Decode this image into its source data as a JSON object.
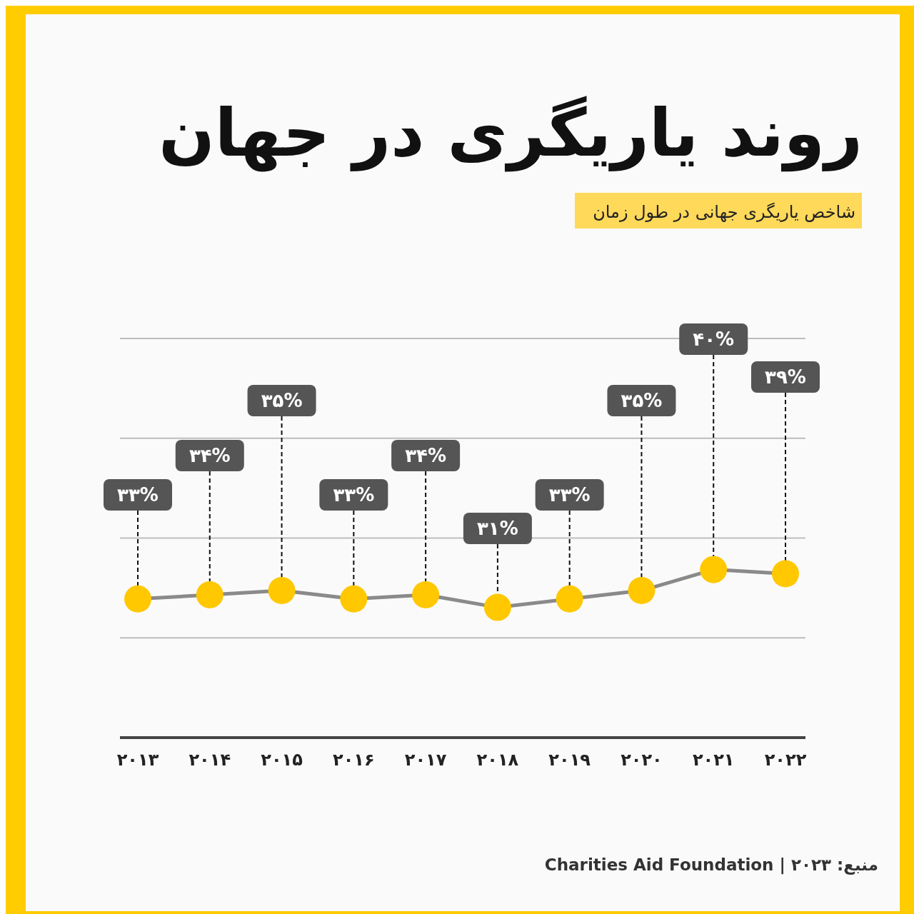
{
  "chart_data": {
    "type": "line",
    "title": "روند یاریگری در جهان",
    "subtitle": "شاخص یاریگری جهانی در طول زمان",
    "categories": [
      "۲۰۱۳",
      "۲۰۱۴",
      "۲۰۱۵",
      "۲۰۱۶",
      "۲۰۱۷",
      "۲۰۱۸",
      "۲۰۱۹",
      "۲۰۲۰",
      "۲۰۲۱",
      "۲۰۲۲"
    ],
    "series": [
      {
        "color": "#ffc800",
        "values": [
          33,
          34,
          35,
          33,
          34,
          31,
          33,
          35,
          40,
          39
        ],
        "value_labels": [
          "۳۳%",
          "۳۴%",
          "۳۵%",
          "۳۳%",
          "۳۴%",
          "۳۱%",
          "۳۳%",
          "۳۵%",
          "۴۰%",
          "۳۹%"
        ]
      }
    ],
    "ylim": [
      0,
      95
    ],
    "yticks": [
      {
        "value": 23.75,
        "label": null
      },
      {
        "value": 47.5,
        "label": null
      },
      {
        "value": 71.25,
        "label": null
      },
      {
        "value": 95,
        "label": null
      }
    ],
    "grid": "y",
    "tick_labels": "x",
    "marker": "circle",
    "annotations": [
      "منبع: ۲۰۲۳ | Charities Aid Foundation"
    ]
  }
}
